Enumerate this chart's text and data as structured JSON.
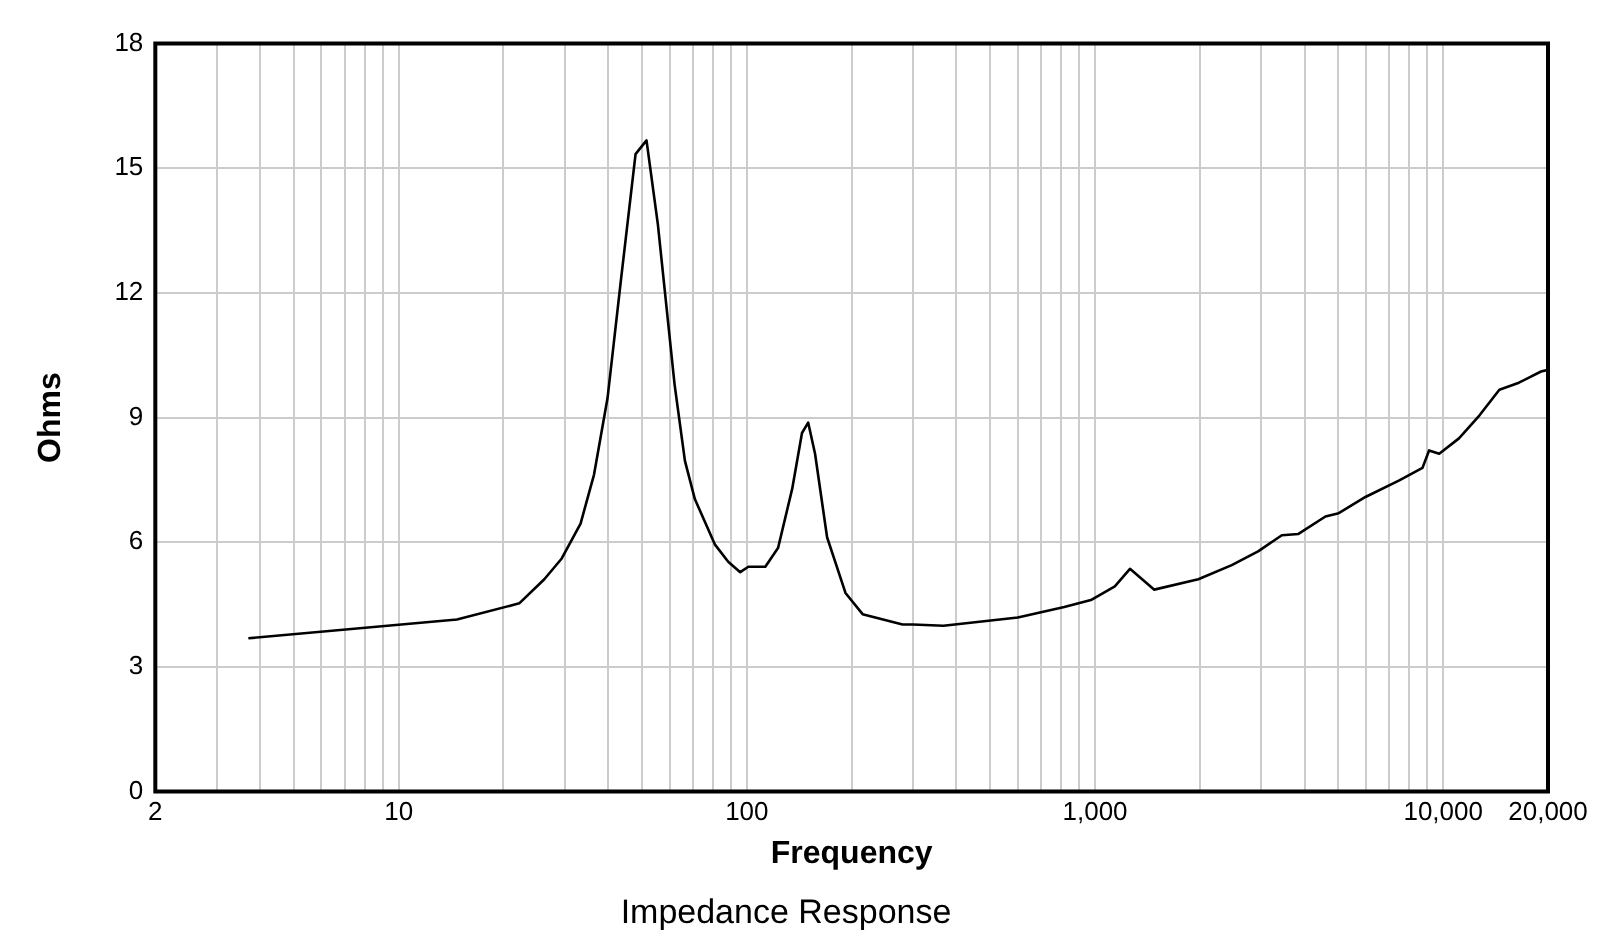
{
  "chart_data": {
    "type": "line",
    "title": "Impedance Response",
    "xlabel": "Frequency",
    "ylabel": "Ohms",
    "log": "x",
    "grid": true,
    "legend": false,
    "marker": "none",
    "line_style": "solid",
    "x": [
      3.7,
      14.7,
      22.2,
      26.2,
      29.4,
      33.3,
      36.4,
      39.8,
      43.5,
      47.9,
      51.5,
      55.5,
      62,
      66.4,
      70.9,
      80.9,
      88.4,
      95.7,
      101,
      113,
      123,
      135,
      144,
      150,
      157,
      170,
      192,
      215,
      280,
      300,
      367,
      600,
      816,
      973,
      1140,
      1260,
      1480,
      1980,
      2470,
      2940,
      3440,
      3840,
      4590,
      5010,
      5980,
      7480,
      8720,
      9110,
      9740,
      11100,
      12700,
      14500,
      16500,
      19100,
      20000
    ],
    "series": [
      {
        "color": "#000000",
        "values": [
          3.69,
          4.14,
          4.53,
          5.11,
          5.61,
          6.45,
          7.63,
          9.47,
          12.32,
          15.34,
          15.67,
          13.66,
          9.8,
          7.96,
          7.04,
          5.95,
          5.53,
          5.28,
          5.41,
          5.41,
          5.87,
          7.29,
          8.63,
          8.88,
          8.13,
          6.12,
          4.78,
          4.27,
          4.02,
          4.02,
          3.99,
          4.19,
          4.44,
          4.61,
          4.94,
          5.36,
          4.86,
          5.11,
          5.45,
          5.78,
          6.17,
          6.2,
          6.62,
          6.7,
          7.09,
          7.49,
          7.79,
          8.21,
          8.13,
          8.5,
          9.05,
          9.67,
          9.84,
          10.11,
          10.15
        ]
      }
    ],
    "xlim": [
      2,
      20000
    ],
    "xticks": [
      2,
      {
        "value": 3,
        "label": null
      },
      {
        "value": 4,
        "label": null
      },
      {
        "value": 5,
        "label": null
      },
      {
        "value": 6,
        "label": null
      },
      {
        "value": 7,
        "label": null
      },
      {
        "value": 8,
        "label": null
      },
      {
        "value": 9,
        "label": null
      },
      10,
      {
        "value": 20,
        "label": null
      },
      {
        "value": 30,
        "label": null
      },
      {
        "value": 40,
        "label": null
      },
      {
        "value": 50,
        "label": null
      },
      {
        "value": 60,
        "label": null
      },
      {
        "value": 70,
        "label": null
      },
      {
        "value": 80,
        "label": null
      },
      {
        "value": 90,
        "label": null
      },
      100,
      {
        "value": 200,
        "label": null
      },
      {
        "value": 300,
        "label": null
      },
      {
        "value": 400,
        "label": null
      },
      {
        "value": 500,
        "label": null
      },
      {
        "value": 600,
        "label": null
      },
      {
        "value": 700,
        "label": null
      },
      {
        "value": 800,
        "label": null
      },
      {
        "value": 900,
        "label": null
      },
      {
        "value": 1000,
        "label": "1,000"
      },
      {
        "value": 2000,
        "label": null
      },
      {
        "value": 3000,
        "label": null
      },
      {
        "value": 4000,
        "label": null
      },
      {
        "value": 5000,
        "label": null
      },
      {
        "value": 6000,
        "label": null
      },
      {
        "value": 7000,
        "label": null
      },
      {
        "value": 8000,
        "label": null
      },
      {
        "value": 9000,
        "label": null
      },
      {
        "value": 10000,
        "label": "10,000"
      },
      {
        "value": 20000,
        "label": "20,000"
      }
    ],
    "ylim": [
      0,
      18
    ],
    "yticks": [
      0,
      3,
      6,
      9,
      12,
      15,
      18
    ]
  }
}
